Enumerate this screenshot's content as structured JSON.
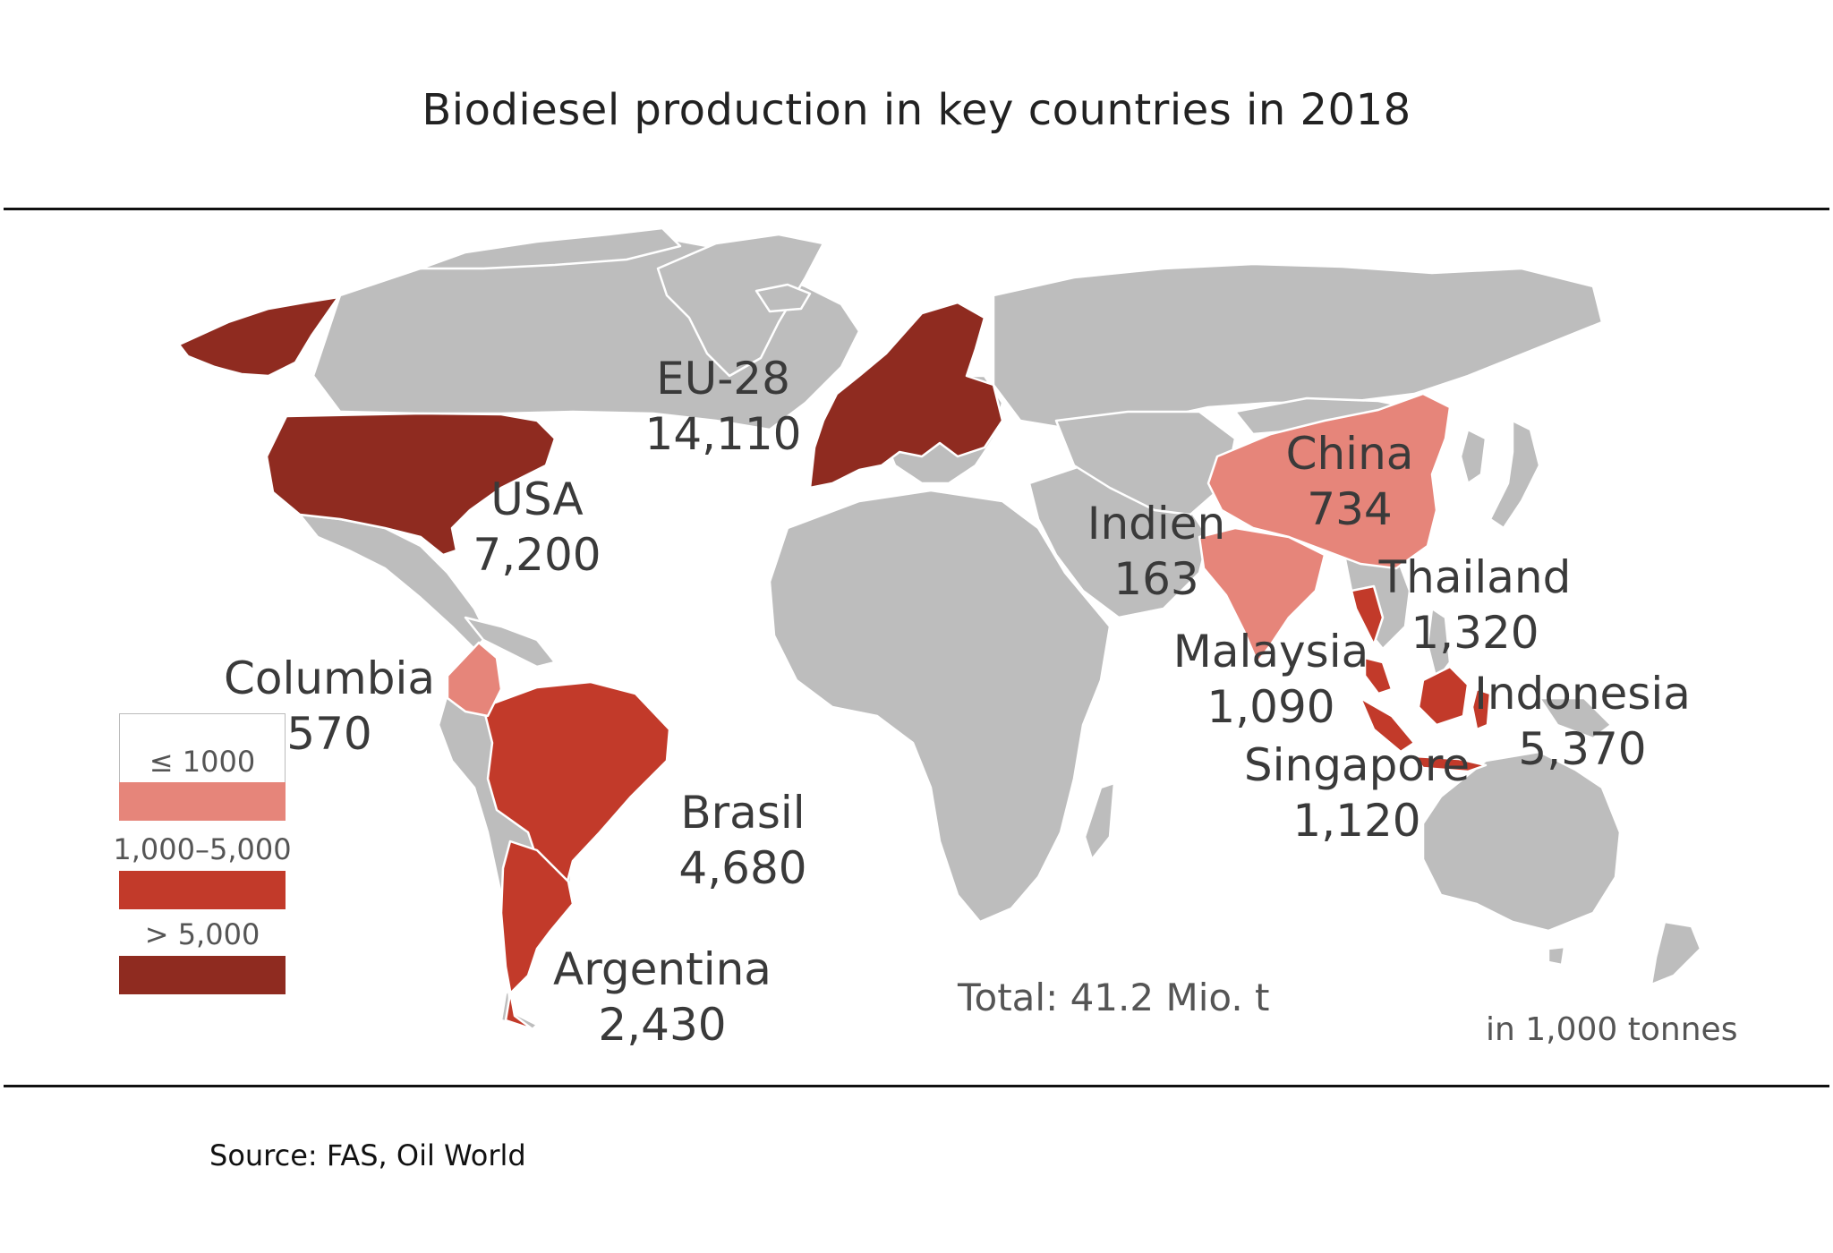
{
  "title": "Biodiesel production in key countries in 2018",
  "legend": [
    {
      "label": "≤ 1000",
      "color": "#e6857a"
    },
    {
      "label": "1,000–5,000",
      "color": "#c23a2a"
    },
    {
      "label": "> 5,000",
      "color": "#8f2b20"
    }
  ],
  "regions": [
    {
      "name": "USA",
      "value": "7,200"
    },
    {
      "name": "EU-28",
      "value": "14,110"
    },
    {
      "name": "Columbia",
      "value": "570"
    },
    {
      "name": "Brasil",
      "value": "4,680"
    },
    {
      "name": "Argentina",
      "value": "2,430"
    },
    {
      "name": "China",
      "value": "734"
    },
    {
      "name": "Indien",
      "value": "163"
    },
    {
      "name": "Thailand",
      "value": "1,320"
    },
    {
      "name": "Malaysia",
      "value": "1,090"
    },
    {
      "name": "Indonesia",
      "value": "5,370"
    },
    {
      "name": "Singapore",
      "value": "1,120"
    }
  ],
  "total": "Total: 41.2 Mio. t",
  "unit": "in 1,000 tonnes",
  "source": "Source: FAS, Oil World"
}
